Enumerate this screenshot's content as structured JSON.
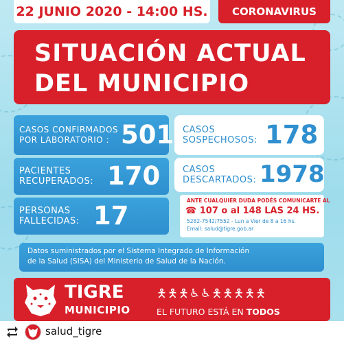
{
  "header": {
    "date_time": "22 JUNIO 2020 - 14:00 HS.",
    "tag": "CORONAVIRUS"
  },
  "title": {
    "line1": "SITUACIÓN ACTUAL",
    "line2": "DEL MUNICIPIO"
  },
  "stats": {
    "confirmed": {
      "label_line1": "CASOS CONFIRMADOS",
      "label_line2": "POR LABORATORIO :",
      "value": "501"
    },
    "recovered": {
      "label_line1": "PACIENTES",
      "label_line2": "RECUPERADOS:",
      "value": "170"
    },
    "deceased": {
      "label_line1": "PERSONAS",
      "label_line2": "FALLECIDAS:",
      "value": "17"
    },
    "suspected": {
      "label_line1": "CASOS",
      "label_line2": "SOSPECHOSOS:",
      "value": "178"
    },
    "discarded": {
      "label_line1": "CASOS",
      "label_line2": "DESCARTADOS:",
      "value": "1978"
    }
  },
  "contact": {
    "intro": "ANTE CUALQUIER DUDA PODÉS COMUNICARTE AL",
    "phones": "107 o al 148 LAS 24 HS.",
    "line3": "5282-7542/7552 - Lun a Vier de 8 a 16 hs.",
    "email": "Email: salud@tigre.gob.ar"
  },
  "source": {
    "line1": "Datos suministrados por el Sistema Integrado de Información",
    "line2": "de la Salud (SISA) del Ministerio de Salud de la Nación."
  },
  "brand": {
    "name": "TIGRE",
    "sub": "MUNICIPIO",
    "slogan_prefix": "EL FUTURO ESTÁ EN",
    "slogan_bold": "TODOS"
  },
  "footer": {
    "repost_icon": "repost-icon",
    "username": "salud_tigre"
  },
  "colors": {
    "red": "#d8202a",
    "blue": "#3aa2dc",
    "light_blue_bg": "#bfe9f3"
  }
}
